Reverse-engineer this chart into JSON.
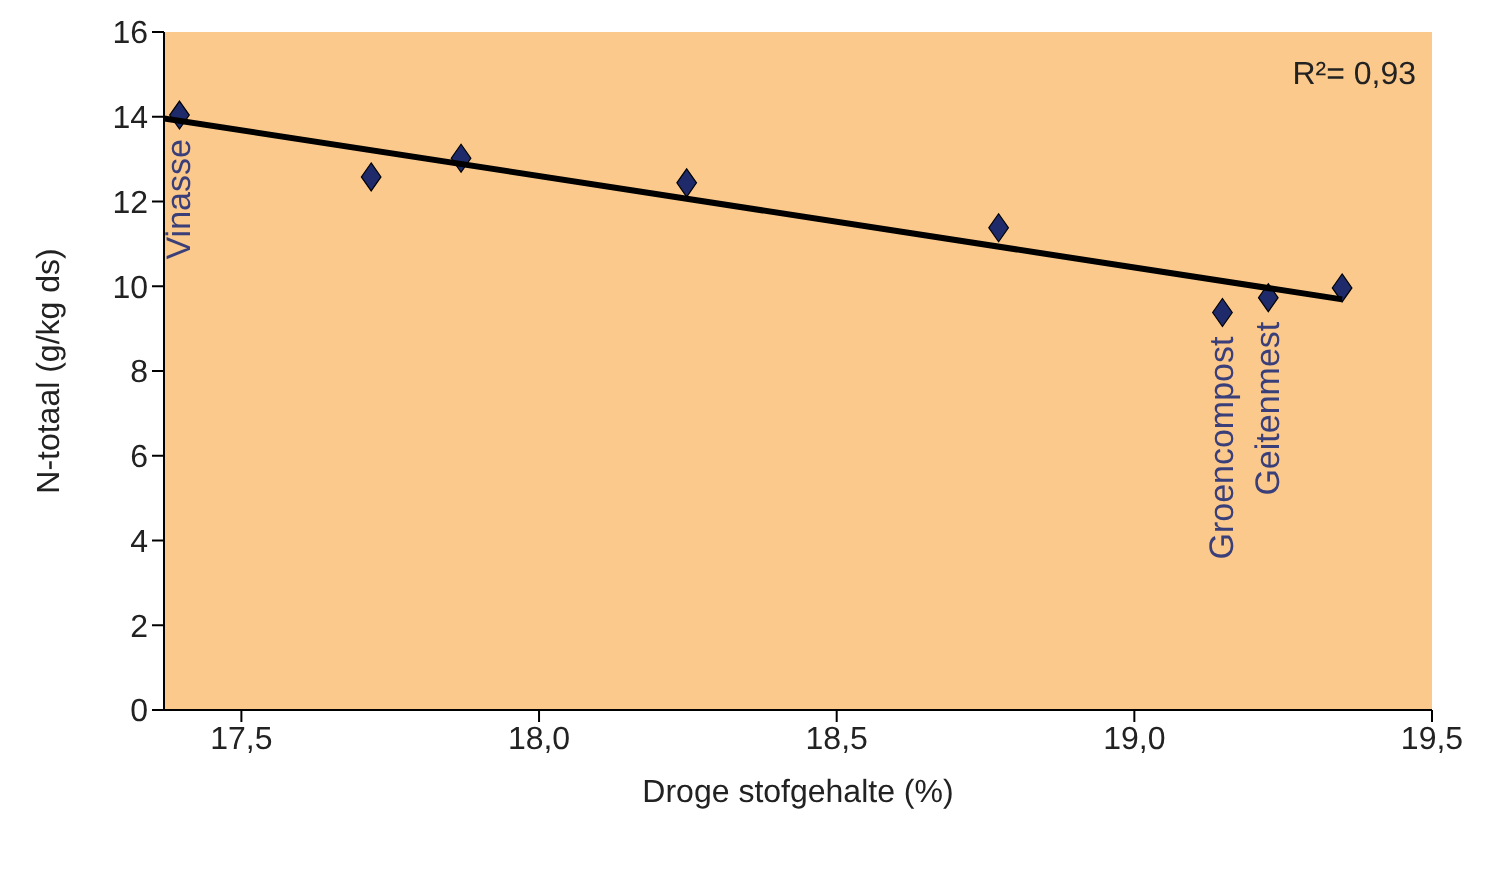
{
  "chart_data": {
    "type": "scatter",
    "xlabel": "Droge stofgehalte (%)",
    "ylabel": "N-totaal (g/kg ds)",
    "x": [
      17.396,
      17.718,
      17.869,
      18.248,
      18.772,
      19.148,
      19.225,
      19.349
    ],
    "series": [
      {
        "marker": "diamond",
        "color": "#1f2a6b",
        "values": [
          14.04,
          12.58,
          13.02,
          12.44,
          11.38,
          9.38,
          9.73,
          9.96
        ]
      },
      {
        "type": "line",
        "color": "#000000",
        "x": [
          17.37,
          19.349
        ],
        "values": [
          13.96,
          9.69
        ]
      }
    ],
    "xlim": [
      17.37,
      19.5
    ],
    "xticks": [
      {
        "value": 17.5,
        "label": "17,5"
      },
      {
        "value": 18,
        "label": "18,0"
      },
      {
        "value": 18.5,
        "label": "18,5"
      },
      {
        "value": 19,
        "label": "19,0"
      },
      {
        "value": 19.5,
        "label": "19,5"
      }
    ],
    "ylim": [
      0,
      16
    ],
    "yticks": [
      0,
      2,
      4,
      6,
      8,
      10,
      12,
      14,
      16
    ],
    "annotations": [
      {
        "text": "Vinasse",
        "x": 17.396,
        "y": 14.04
      },
      {
        "text": "Groencompost",
        "x": 19.148,
        "y": 9.38
      },
      {
        "text": "Geitenmest",
        "x": 19.225,
        "y": 9.73
      },
      "R²= 0,93"
    ]
  }
}
